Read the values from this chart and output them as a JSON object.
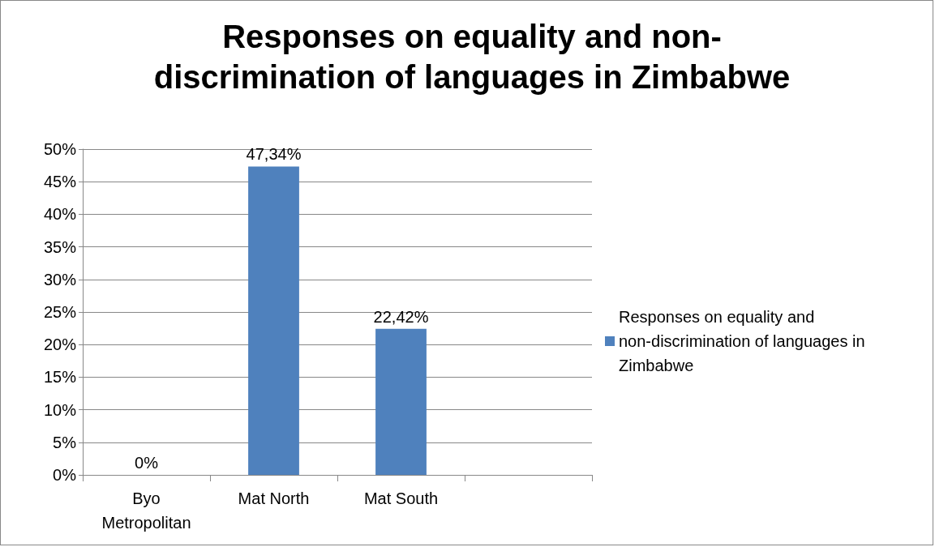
{
  "chart_data": {
    "type": "bar",
    "title": "Responses on equality and non-\ndiscrimination of languages in Zimbabwe",
    "categories": [
      "Byo\nMetropolitan",
      "Mat North",
      "Mat South",
      null
    ],
    "series": [
      {
        "name": "Responses on equality and non-discrimination of languages in Zimbabwe",
        "color": "#4f81bd",
        "values": [
          0,
          47.34,
          22.42,
          null
        ],
        "value_labels": [
          "0%",
          "47,34%",
          "22,42%",
          null
        ]
      }
    ],
    "ylim": [
      0,
      50
    ],
    "yticks": [
      {
        "value": 0,
        "label": "0%"
      },
      {
        "value": 5,
        "label": "5%"
      },
      {
        "value": 10,
        "label": "10%"
      },
      {
        "value": 15,
        "label": "15%"
      },
      {
        "value": 20,
        "label": "20%"
      },
      {
        "value": 25,
        "label": "25%"
      },
      {
        "value": 30,
        "label": "30%"
      },
      {
        "value": 35,
        "label": "35%"
      },
      {
        "value": 40,
        "label": "40%"
      },
      {
        "value": 45,
        "label": "45%"
      },
      {
        "value": 50,
        "label": "50%"
      }
    ],
    "grid": "y",
    "legend": "right"
  }
}
